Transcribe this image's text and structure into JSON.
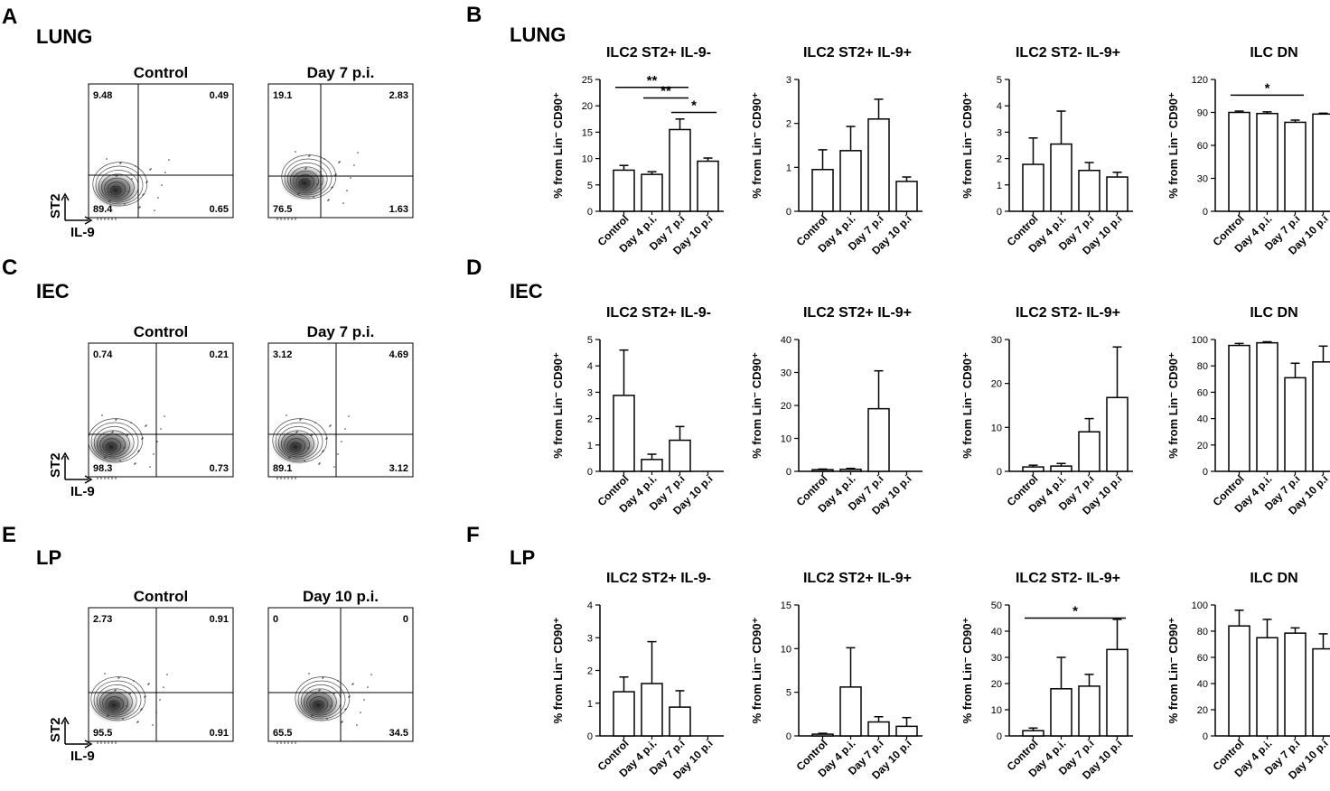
{
  "figure": {
    "panel_letters": [
      "A",
      "B",
      "C",
      "D",
      "E",
      "F"
    ],
    "tissues": [
      "LUNG",
      "IEC",
      "LP"
    ],
    "flow": [
      {
        "panel": "A",
        "tissue": "LUNG",
        "xaxis": "IL-9",
        "yaxis": "ST2",
        "plots": [
          {
            "title": "Control",
            "q": [
              "9.48",
              "0.49",
              "89.4",
              "0.65"
            ]
          },
          {
            "title": "Day 7 p.i.",
            "q": [
              "19.1",
              "2.83",
              "76.5",
              "1.63"
            ]
          }
        ]
      },
      {
        "panel": "C",
        "tissue": "IEC",
        "xaxis": "IL-9",
        "yaxis": "ST2",
        "plots": [
          {
            "title": "Control",
            "q": [
              "0.74",
              "0.21",
              "98.3",
              "0.73"
            ]
          },
          {
            "title": "Day 7 p.i.",
            "q": [
              "3.12",
              "4.69",
              "89.1",
              "3.12"
            ]
          }
        ]
      },
      {
        "panel": "E",
        "tissue": "LP",
        "xaxis": "IL-9",
        "yaxis": "ST2",
        "plots": [
          {
            "title": "Control",
            "q": [
              "2.73",
              "0.91",
              "95.5",
              "0.91"
            ]
          },
          {
            "title": "Day 10 p.i.",
            "q": [
              "0",
              "0",
              "65.5",
              "34.5"
            ]
          }
        ]
      }
    ]
  },
  "chart_data": [
    {
      "type": "bar",
      "panel": "B",
      "tissue": "LUNG",
      "title": "ILC2 ST2+ IL-9-",
      "ylabel": "% from Lin⁻ CD90⁺",
      "categories": [
        "Control",
        "Day 4 p.i.",
        "Day 7 p.i",
        "Day 10 p.i"
      ],
      "values": [
        7.8,
        7.0,
        15.5,
        9.5
      ],
      "errors": [
        0.9,
        0.5,
        2.0,
        0.6
      ],
      "ylim": [
        0,
        25
      ],
      "yticks": [
        0,
        5,
        10,
        15,
        20,
        25
      ],
      "significance": [
        {
          "from": 0,
          "to": 2,
          "label": "**"
        },
        {
          "from": 1,
          "to": 2,
          "label": "**"
        },
        {
          "from": 2,
          "to": 3,
          "label": "*"
        }
      ]
    },
    {
      "type": "bar",
      "panel": "B",
      "tissue": "LUNG",
      "title": "ILC2 ST2+ IL-9+",
      "ylabel": "% from Lin⁻ CD90⁺",
      "categories": [
        "Control",
        "Day 4 p.i.",
        "Day 7 p.i",
        "Day 10 p.i"
      ],
      "values": [
        0.95,
        1.38,
        2.1,
        0.68
      ],
      "errors": [
        0.45,
        0.55,
        0.45,
        0.1
      ],
      "ylim": [
        0,
        3
      ],
      "yticks": [
        0,
        1,
        2,
        3
      ],
      "significance": []
    },
    {
      "type": "bar",
      "panel": "B",
      "tissue": "LUNG",
      "title": "ILC2 ST2- IL-9+",
      "ylabel": "% from Lin⁻ CD90⁺",
      "categories": [
        "Control",
        "Day 4 p.i.",
        "Day 7 p.i",
        "Day 10 p.i"
      ],
      "values": [
        1.78,
        2.55,
        1.55,
        1.3
      ],
      "errors": [
        1.0,
        1.25,
        0.3,
        0.18
      ],
      "ylim": [
        0,
        5
      ],
      "yticks": [
        0,
        1,
        2,
        3,
        4,
        5
      ],
      "significance": []
    },
    {
      "type": "bar",
      "panel": "B",
      "tissue": "LUNG",
      "title": "ILC DN",
      "ylabel": "% from Lin⁻ CD90⁺",
      "categories": [
        "Control",
        "Day 4 p.i.",
        "Day 7 p.i",
        "Day 10 p.i"
      ],
      "values": [
        90,
        89,
        81,
        88.5
      ],
      "errors": [
        1.2,
        1.5,
        2.0,
        0.8
      ],
      "ylim": [
        0,
        120
      ],
      "yticks": [
        0,
        30,
        60,
        90,
        120
      ],
      "significance": [
        {
          "from": 0,
          "to": 2,
          "label": "*"
        }
      ]
    },
    {
      "type": "bar",
      "panel": "D",
      "tissue": "IEC",
      "title": "ILC2 ST2+ IL-9-",
      "ylabel": "% from Lin⁻ CD90⁺",
      "categories": [
        "Control",
        "Day 4 p.i.",
        "Day 7 p.i",
        "Day 10 p.i"
      ],
      "values": [
        2.88,
        0.45,
        1.18,
        0
      ],
      "errors": [
        1.72,
        0.2,
        0.52,
        0
      ],
      "ylim": [
        0,
        5
      ],
      "yticks": [
        0,
        1,
        2,
        3,
        4,
        5
      ],
      "significance": []
    },
    {
      "type": "bar",
      "panel": "D",
      "tissue": "IEC",
      "title": "ILC2 ST2+ IL-9+",
      "ylabel": "% from Lin⁻ CD90⁺",
      "categories": [
        "Control",
        "Day 4 p.i.",
        "Day 7 p.i",
        "Day 10 p.i"
      ],
      "values": [
        0.5,
        0.6,
        19,
        0
      ],
      "errors": [
        0.2,
        0.3,
        11.5,
        0
      ],
      "ylim": [
        0,
        40
      ],
      "yticks": [
        0,
        10,
        20,
        30,
        40
      ],
      "significance": []
    },
    {
      "type": "bar",
      "panel": "D",
      "tissue": "IEC",
      "title": "ILC2 ST2- IL-9+",
      "ylabel": "% from Lin⁻ CD90⁺",
      "categories": [
        "Control",
        "Day 4 p.i.",
        "Day 7 p.i",
        "Day 10 p.i"
      ],
      "values": [
        1.0,
        1.2,
        9.0,
        16.8
      ],
      "errors": [
        0.4,
        0.6,
        3.0,
        11.5
      ],
      "ylim": [
        0,
        30
      ],
      "yticks": [
        0,
        10,
        20,
        30
      ],
      "significance": []
    },
    {
      "type": "bar",
      "panel": "D",
      "tissue": "IEC",
      "title": "ILC DN",
      "ylabel": "% from Lin⁻ CD90⁺",
      "categories": [
        "Control",
        "Day 4 p.i.",
        "Day 7 p.i",
        "Day 10 p.i"
      ],
      "values": [
        95.5,
        97.5,
        71,
        83
      ],
      "errors": [
        1.5,
        0.8,
        11,
        12
      ],
      "ylim": [
        0,
        100
      ],
      "yticks": [
        0,
        20,
        40,
        60,
        80,
        100
      ],
      "significance": []
    },
    {
      "type": "bar",
      "panel": "F",
      "tissue": "LP",
      "title": "ILC2 ST2+ IL-9-",
      "ylabel": "% from Lin⁻ CD90⁺",
      "categories": [
        "Control",
        "Day 4 p.i.",
        "Day 7 p.i",
        "Day 10 p.i"
      ],
      "values": [
        1.35,
        1.6,
        0.88,
        0
      ],
      "errors": [
        0.45,
        1.28,
        0.5,
        0
      ],
      "ylim": [
        0,
        4
      ],
      "yticks": [
        0,
        1,
        2,
        3,
        4
      ],
      "significance": []
    },
    {
      "type": "bar",
      "panel": "F",
      "tissue": "LP",
      "title": "ILC2 ST2+ IL-9+",
      "ylabel": "% from Lin⁻ CD90⁺",
      "categories": [
        "Control",
        "Day 4 p.i.",
        "Day 7 p.i",
        "Day 10 p.i"
      ],
      "values": [
        0.2,
        5.6,
        1.6,
        1.1
      ],
      "errors": [
        0.1,
        4.5,
        0.6,
        1.0
      ],
      "ylim": [
        0,
        15
      ],
      "yticks": [
        0,
        5,
        10,
        15
      ],
      "significance": []
    },
    {
      "type": "bar",
      "panel": "F",
      "tissue": "LP",
      "title": "ILC2 ST2- IL-9+",
      "ylabel": "% from Lin⁻ CD90⁺",
      "categories": [
        "Control",
        "Day 4 p.i.",
        "Day 7 p.i",
        "Day 10 p.i"
      ],
      "values": [
        2,
        18,
        19,
        33
      ],
      "errors": [
        1,
        12,
        4.5,
        11.5
      ],
      "ylim": [
        0,
        50
      ],
      "yticks": [
        0,
        10,
        20,
        30,
        40,
        50
      ],
      "significance": [
        {
          "from": 0,
          "to": 3,
          "label": "*"
        }
      ]
    },
    {
      "type": "bar",
      "panel": "F",
      "tissue": "LP",
      "title": "ILC DN",
      "ylabel": "% from Lin⁻ CD90⁺",
      "categories": [
        "Control",
        "Day 4 p.i.",
        "Day 7 p.i",
        "Day 10 p.i"
      ],
      "values": [
        84,
        75,
        78.5,
        66.5
      ],
      "errors": [
        12,
        14,
        4,
        11.5
      ],
      "ylim": [
        0,
        100
      ],
      "yticks": [
        0,
        20,
        40,
        60,
        80,
        100
      ],
      "significance": []
    }
  ]
}
